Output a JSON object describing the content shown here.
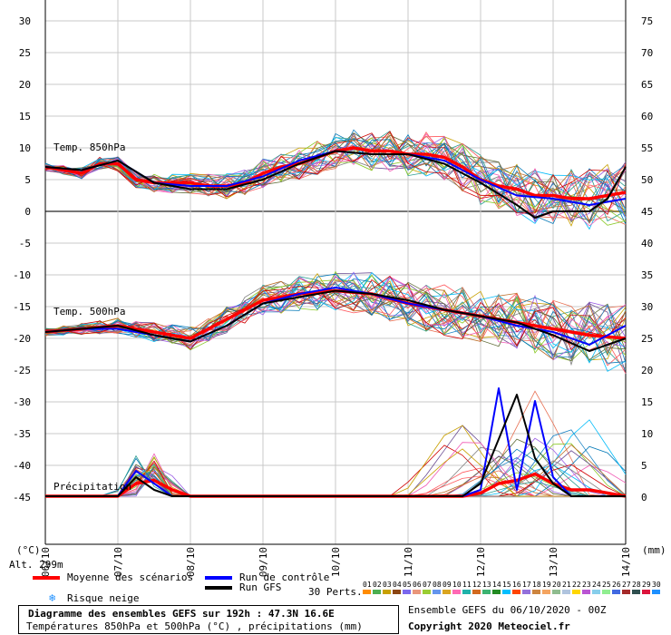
{
  "chart_data": {
    "type": "line",
    "title": "Diagramme des ensembles GEFS sur 192h : 47.3N 16.6E",
    "subtitle": "Températures 850hPa et 500hPa (°C) , précipitations (mm)",
    "left_axis": {
      "unit": "(°C)",
      "ticks": [
        30,
        25,
        20,
        15,
        10,
        5,
        0,
        -5,
        -10,
        -15,
        -20,
        -25,
        -30,
        -35,
        -40,
        -45
      ],
      "range": [
        -54,
        33
      ]
    },
    "right_axis": {
      "unit": "(mm)",
      "ticks": [
        75,
        70,
        65,
        60,
        55,
        50,
        45,
        40,
        35,
        30,
        25,
        20,
        15,
        10,
        5,
        0
      ]
    },
    "x_ticks": [
      "06/10",
      "07/10",
      "08/10",
      "09/10",
      "10/10",
      "11/10",
      "12/10",
      "13/10",
      "14/10"
    ],
    "x_range_hours": [
      0,
      192
    ],
    "altitude": "Alt. 299m",
    "labels": {
      "t850": "Temp. 850hPa",
      "t500": "Temp. 500hPa",
      "precip": "Précipitation"
    },
    "series": [
      {
        "name": "Moyenne des scénarios",
        "group": "t850",
        "color": "#ff0000",
        "x": [
          0,
          6,
          12,
          18,
          24,
          30,
          36,
          42,
          48,
          54,
          60,
          66,
          72,
          78,
          84,
          90,
          96,
          102,
          108,
          114,
          120,
          126,
          132,
          138,
          144,
          150,
          156,
          162,
          168,
          174,
          180,
          186,
          192
        ],
        "values": [
          7,
          6.5,
          6,
          7.5,
          7.5,
          5,
          4.5,
          4.5,
          4.5,
          4,
          4,
          4.5,
          6,
          7,
          7.5,
          8.5,
          9.5,
          10,
          9.5,
          9.5,
          9,
          9,
          8.5,
          7,
          5,
          4,
          3.5,
          2.5,
          2.5,
          2,
          2,
          2.5,
          3
        ]
      },
      {
        "name": "Run de contrôle",
        "group": "t850",
        "color": "#0000ff",
        "x": [
          0,
          12,
          24,
          36,
          48,
          60,
          72,
          84,
          96,
          108,
          120,
          132,
          144,
          156,
          168,
          180,
          192
        ],
        "values": [
          7,
          6.5,
          8,
          4.5,
          4,
          4,
          5.5,
          8,
          9.5,
          9,
          9,
          8,
          5,
          2.5,
          2,
          1,
          2
        ]
      },
      {
        "name": "Run GFS",
        "group": "t850",
        "color": "#000000",
        "x": [
          0,
          12,
          24,
          36,
          48,
          60,
          72,
          84,
          96,
          108,
          120,
          132,
          144,
          156,
          162,
          168,
          180,
          186,
          192
        ],
        "values": [
          7,
          6.5,
          8,
          4.5,
          3.5,
          3.5,
          5,
          7.5,
          9.5,
          9,
          9,
          7.5,
          4.5,
          1,
          -1,
          0,
          0,
          2,
          7
        ]
      },
      {
        "name": "Moyenne des scénarios",
        "group": "t500",
        "color": "#ff0000",
        "x": [
          0,
          12,
          24,
          36,
          48,
          60,
          72,
          84,
          96,
          108,
          120,
          132,
          144,
          156,
          168,
          180,
          192
        ],
        "values": [
          -19,
          -18.5,
          -18,
          -19,
          -20,
          -17,
          -14,
          -13,
          -12.5,
          -13,
          -14.5,
          -15.5,
          -16.5,
          -17.5,
          -18.5,
          -19.5,
          -20
        ]
      },
      {
        "name": "Run de contrôle",
        "group": "t500",
        "color": "#0000ff",
        "x": [
          0,
          12,
          24,
          36,
          48,
          60,
          72,
          84,
          96,
          108,
          120,
          132,
          144,
          156,
          168,
          180,
          192
        ],
        "values": [
          -19,
          -18.5,
          -18.5,
          -19.5,
          -20.5,
          -18,
          -14.5,
          -13,
          -12,
          -13,
          -14.5,
          -15.5,
          -16.5,
          -18,
          -19,
          -21,
          -18
        ]
      },
      {
        "name": "Run GFS",
        "group": "t500",
        "color": "#000000",
        "x": [
          0,
          12,
          24,
          36,
          48,
          60,
          72,
          84,
          96,
          108,
          120,
          132,
          144,
          156,
          168,
          180,
          192
        ],
        "values": [
          -19,
          -18.5,
          -18,
          -19.5,
          -20.5,
          -18,
          -14.5,
          -13.5,
          -12.5,
          -13,
          -14,
          -15.5,
          -16.5,
          -17.5,
          -19.5,
          -22,
          -20
        ]
      },
      {
        "name": "Moyenne des scénarios",
        "group": "precip",
        "color": "#ff0000",
        "x": [
          0,
          6,
          12,
          18,
          24,
          30,
          36,
          42,
          48,
          54,
          60,
          66,
          72,
          78,
          84,
          90,
          96,
          102,
          108,
          114,
          120,
          126,
          132,
          138,
          144,
          150,
          156,
          162,
          168,
          174,
          180,
          186,
          192
        ],
        "values": [
          0,
          0,
          0,
          0,
          0,
          2,
          2.5,
          1,
          0,
          0,
          0,
          0,
          0,
          0,
          0,
          0,
          0,
          0,
          0,
          0,
          0,
          0,
          0,
          0,
          0.5,
          2,
          2.5,
          3.5,
          2,
          1,
          1,
          0.5,
          0
        ]
      },
      {
        "name": "Run de contrôle",
        "group": "precip",
        "color": "#0000ff",
        "x": [
          0,
          12,
          24,
          30,
          36,
          42,
          48,
          96,
          132,
          138,
          144,
          150,
          156,
          162,
          168,
          174,
          180,
          192
        ],
        "values": [
          0,
          0,
          0,
          4,
          2,
          0,
          0,
          0,
          0,
          0,
          1,
          17,
          1,
          15,
          3,
          0,
          0,
          0
        ]
      },
      {
        "name": "Run GFS",
        "group": "precip",
        "color": "#000000",
        "x": [
          0,
          12,
          24,
          30,
          36,
          42,
          48,
          96,
          132,
          138,
          144,
          150,
          156,
          162,
          168,
          174,
          180,
          192
        ],
        "values": [
          0,
          0,
          0,
          3,
          1,
          0,
          0,
          0,
          0,
          0,
          2,
          9,
          16,
          6,
          2,
          0,
          0,
          0
        ]
      }
    ],
    "members": {
      "colors": [
        "#c8a000",
        "#808080",
        "#2a9d8f",
        "#e76f51",
        "#6a4c93",
        "#1982c4",
        "#8ac926",
        "#ff595e",
        "#9b5de5",
        "#00bbf9",
        "#f15bb5",
        "#606c38",
        "#bc6c25",
        "#0077b6",
        "#d00000"
      ],
      "t850_spread_end": [
        -1.5,
        10
      ],
      "t500_spread_end": [
        -29,
        -15
      ],
      "precip_peak": [
        18,
        17,
        15,
        14,
        12,
        10,
        9,
        8,
        7,
        6
      ]
    }
  },
  "legend": {
    "mean": "Moyenne des scénarios",
    "control": "Run de contrôle",
    "gfs": "Run GFS",
    "snow": "Risque neige",
    "snow_icon": "snowflake-icon",
    "perts": "30 Perts.",
    "pert_numbers": [
      "01",
      "02",
      "03",
      "04",
      "05",
      "06",
      "07",
      "08",
      "09",
      "10",
      "11",
      "12",
      "13",
      "14",
      "15",
      "16",
      "17",
      "18",
      "19",
      "20",
      "21",
      "22",
      "23",
      "24",
      "25",
      "26",
      "27",
      "28",
      "29",
      "30"
    ],
    "pert_colors": [
      "#ff8c00",
      "#4caf50",
      "#c8a000",
      "#8b4513",
      "#7b68ee",
      "#e9967a",
      "#9acd32",
      "#6495ed",
      "#daa520",
      "#ff69b4",
      "#20b2aa",
      "#d2691e",
      "#3cb371",
      "#228b22",
      "#00bfff",
      "#ff4500",
      "#9370db",
      "#cd853f",
      "#f4a460",
      "#8fbc8f",
      "#b0c4de",
      "#ffd700",
      "#ba55d3",
      "#87ceeb",
      "#90ee90",
      "#4169e1",
      "#a52a2a",
      "#2f4f4f",
      "#dc143c",
      "#1e90ff"
    ]
  },
  "footer": {
    "line1": "Diagramme des ensembles GEFS sur 192h : 47.3N 16.6E",
    "line2": "Températures 850hPa et 500hPa (°C) , précipitations (mm)",
    "ensemble": "Ensemble GEFS du 06/10/2020 - 00Z",
    "copyright": "Copyright 2020 Meteociel.fr"
  }
}
